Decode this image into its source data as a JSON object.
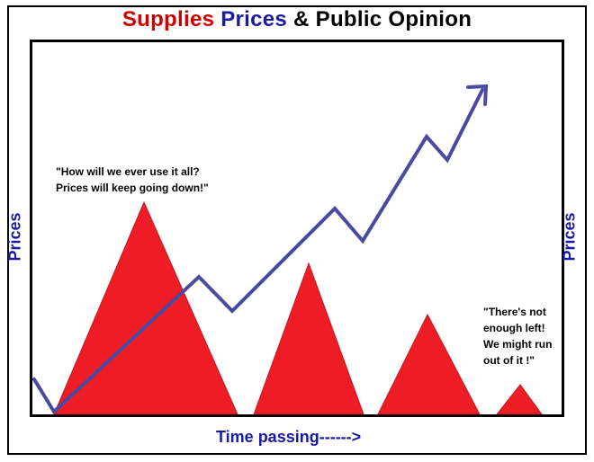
{
  "title": {
    "part1": "Supplies",
    "part2": "Prices",
    "part3": "& Public Opinion"
  },
  "colors": {
    "supplies": "#cc0000",
    "prices": "#1a1aa6",
    "triangle": "#ee1c25",
    "arrow": "#4a4aa0",
    "text": "#000000"
  },
  "axis": {
    "left_label": "Prices",
    "right_label": "Prices",
    "bottom_label": "Time passing------>"
  },
  "annotations": {
    "left_quote": [
      "\"How will we ever use it all?",
      "Prices will keep going down!\""
    ],
    "right_quote": [
      "\"There's not",
      "enough left!",
      "We might run",
      "out of it !\""
    ]
  },
  "icons": {
    "supply_shape": "triangle",
    "price_line": "zigzag-arrow"
  }
}
